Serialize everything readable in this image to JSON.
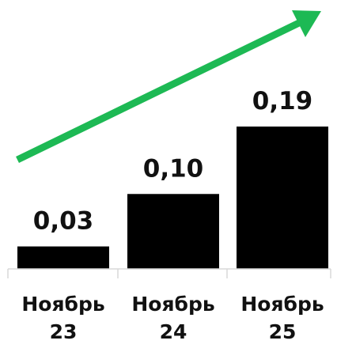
{
  "chart_data": {
    "type": "bar",
    "categories": [
      [
        "Ноябрь",
        "23"
      ],
      [
        "Ноябрь",
        "24"
      ],
      [
        "Ноябрь",
        "25"
      ]
    ],
    "values": [
      0.03,
      0.1,
      0.19
    ],
    "value_labels": [
      "0,03",
      "0,10",
      "0,19"
    ],
    "ylim": [
      0,
      0.19
    ],
    "grid": false,
    "colors": {
      "bar": "#000000",
      "axis": "#d9d9d9",
      "trend_arrow": "#1db954"
    },
    "annotations": [
      {
        "type": "trend-arrow",
        "direction": "up-right"
      }
    ]
  }
}
